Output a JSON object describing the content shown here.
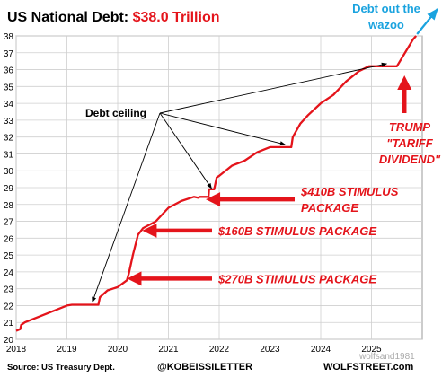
{
  "chart_data": {
    "type": "line",
    "title": "US National Debt:",
    "title_value": "$38.0 Trillion",
    "xlabel": "",
    "ylabel": "",
    "ylim": [
      20,
      38
    ],
    "yticks": [
      20,
      21,
      22,
      23,
      24,
      25,
      26,
      27,
      28,
      29,
      30,
      31,
      32,
      33,
      34,
      35,
      36,
      37,
      38
    ],
    "xticks": [
      "2018",
      "2019",
      "2020",
      "2021",
      "2022",
      "2023",
      "2024",
      "2025"
    ],
    "grid": true,
    "series": [
      {
        "color": "#e4141b",
        "points": [
          [
            2018.0,
            20.5
          ],
          [
            2018.08,
            20.6
          ],
          [
            2018.1,
            20.85
          ],
          [
            2018.17,
            21.0
          ],
          [
            2018.25,
            21.1
          ],
          [
            2018.5,
            21.4
          ],
          [
            2018.75,
            21.7
          ],
          [
            2019.0,
            22.0
          ],
          [
            2019.1,
            22.05
          ],
          [
            2019.62,
            22.05
          ],
          [
            2019.65,
            22.5
          ],
          [
            2019.8,
            22.9
          ],
          [
            2020.0,
            23.1
          ],
          [
            2020.18,
            23.5
          ],
          [
            2020.22,
            23.9
          ],
          [
            2020.3,
            25.0
          ],
          [
            2020.4,
            26.2
          ],
          [
            2020.5,
            26.6
          ],
          [
            2020.75,
            27.0
          ],
          [
            2021.0,
            27.8
          ],
          [
            2021.25,
            28.2
          ],
          [
            2021.5,
            28.45
          ],
          [
            2021.58,
            28.4
          ],
          [
            2021.62,
            28.45
          ],
          [
            2021.79,
            28.45
          ],
          [
            2021.8,
            28.9
          ],
          [
            2021.9,
            28.9
          ],
          [
            2021.95,
            29.6
          ],
          [
            2022.0,
            29.7
          ],
          [
            2022.25,
            30.3
          ],
          [
            2022.5,
            30.6
          ],
          [
            2022.75,
            31.1
          ],
          [
            2023.0,
            31.4
          ],
          [
            2023.42,
            31.4
          ],
          [
            2023.45,
            32.0
          ],
          [
            2023.6,
            32.8
          ],
          [
            2023.75,
            33.3
          ],
          [
            2024.0,
            34.0
          ],
          [
            2024.25,
            34.5
          ],
          [
            2024.5,
            35.3
          ],
          [
            2024.75,
            35.9
          ],
          [
            2024.95,
            36.2
          ],
          [
            2025.05,
            36.2
          ],
          [
            2025.5,
            36.2
          ],
          [
            2025.58,
            36.6
          ],
          [
            2025.7,
            37.2
          ],
          [
            2025.82,
            37.8
          ],
          [
            2025.88,
            38.0
          ]
        ]
      }
    ],
    "annotations": [
      {
        "id": "debt_ceiling",
        "text": "Debt ceiling",
        "color": "#000000"
      },
      {
        "id": "stim_410",
        "text": "$410B STIMULUS\nPACKAGE",
        "color": "#e4141b"
      },
      {
        "id": "stim_160",
        "text": "$160B STIMULUS PACKAGE",
        "color": "#e4141b"
      },
      {
        "id": "stim_270",
        "text": "$270B STIMULUS PACKAGE",
        "color": "#e4141b"
      },
      {
        "id": "trump",
        "text": "TRUMP\n\"TARIFF\nDIVIDEND\"",
        "color": "#e4141b"
      },
      {
        "id": "wazoo",
        "text": "Debt out the\nwazoo",
        "color": "#1aa3df"
      }
    ],
    "footer": {
      "source": "Source: US Treasury Dept.",
      "handle": "@KOBEISSILETTER",
      "site": "WOLFSTREET.com",
      "overlay": "wolfsand1981"
    }
  }
}
